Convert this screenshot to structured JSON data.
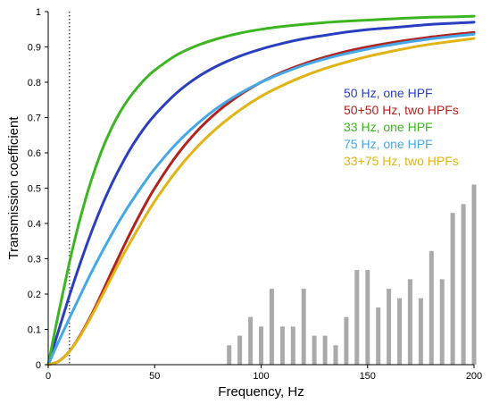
{
  "chart_data": {
    "type": "line",
    "xlabel": "Frequency, Hz",
    "ylabel": "Transmission coefficient",
    "xlim": [
      0,
      200
    ],
    "ylim": [
      0,
      1
    ],
    "x_ticks": [
      0,
      50,
      100,
      150,
      200
    ],
    "x_tick_labels": [
      "0",
      "50",
      "100",
      "150",
      "200"
    ],
    "y_ticks": [
      0,
      0.1,
      0.2,
      0.3,
      0.4,
      0.5,
      0.6,
      0.7,
      0.8,
      0.9,
      1
    ],
    "y_tick_labels": [
      "0",
      "0.1",
      "0.2",
      "0.3",
      "0.4",
      "0.5",
      "0.6",
      "0.7",
      "0.8",
      "0.9",
      "1"
    ],
    "grid": false,
    "legend_position": "right",
    "reference_line": {
      "x": 10,
      "style": "dotted"
    },
    "x": [
      0,
      5,
      10,
      15,
      20,
      25,
      30,
      35,
      40,
      45,
      50,
      60,
      70,
      80,
      90,
      100,
      110,
      120,
      130,
      140,
      150,
      160,
      170,
      180,
      190,
      200
    ],
    "series": [
      {
        "name": "50 Hz, one HPF",
        "color": "#2a3fbf",
        "values": [
          0,
          0.099,
          0.196,
          0.287,
          0.371,
          0.447,
          0.514,
          0.573,
          0.625,
          0.669,
          0.707,
          0.768,
          0.814,
          0.848,
          0.874,
          0.894,
          0.91,
          0.923,
          0.933,
          0.942,
          0.949,
          0.954,
          0.959,
          0.964,
          0.967,
          0.97
        ]
      },
      {
        "name": "50+50 Hz, two HPFs",
        "color": "#b2221e",
        "values": [
          0,
          0.01,
          0.038,
          0.083,
          0.138,
          0.2,
          0.265,
          0.329,
          0.39,
          0.447,
          0.5,
          0.59,
          0.662,
          0.719,
          0.764,
          0.8,
          0.829,
          0.852,
          0.871,
          0.887,
          0.9,
          0.911,
          0.92,
          0.928,
          0.935,
          0.941
        ]
      },
      {
        "name": "33 Hz, one HPF",
        "color": "#3cb521",
        "values": [
          0,
          0.15,
          0.29,
          0.414,
          0.518,
          0.604,
          0.673,
          0.728,
          0.771,
          0.806,
          0.834,
          0.876,
          0.904,
          0.924,
          0.939,
          0.95,
          0.958,
          0.964,
          0.969,
          0.973,
          0.976,
          0.979,
          0.982,
          0.984,
          0.985,
          0.987
        ]
      },
      {
        "name": "75 Hz, one HPF",
        "color": "#44a8e6",
        "values": [
          0,
          0.067,
          0.132,
          0.196,
          0.258,
          0.316,
          0.371,
          0.423,
          0.47,
          0.514,
          0.555,
          0.625,
          0.682,
          0.73,
          0.768,
          0.8,
          0.826,
          0.848,
          0.866,
          0.881,
          0.894,
          0.905,
          0.915,
          0.923,
          0.93,
          0.936
        ]
      },
      {
        "name": "33+75 Hz, two HPFs",
        "color": "#e0b415",
        "values": [
          0,
          0.01,
          0.038,
          0.081,
          0.134,
          0.191,
          0.25,
          0.308,
          0.362,
          0.414,
          0.463,
          0.547,
          0.617,
          0.674,
          0.721,
          0.76,
          0.791,
          0.817,
          0.839,
          0.857,
          0.873,
          0.886,
          0.898,
          0.908,
          0.916,
          0.924
        ]
      }
    ],
    "histogram": {
      "color": "#aaaaaa",
      "x": [
        85,
        90,
        95,
        100,
        105,
        110,
        115,
        120,
        125,
        130,
        135,
        140,
        145,
        150,
        155,
        160,
        165,
        170,
        175,
        180,
        185,
        190,
        195,
        200
      ],
      "values": [
        0.055,
        0.082,
        0.135,
        0.108,
        0.215,
        0.108,
        0.108,
        0.215,
        0.082,
        0.082,
        0.055,
        0.135,
        0.268,
        0.268,
        0.162,
        0.215,
        0.188,
        0.242,
        0.188,
        0.322,
        0.242,
        0.43,
        0.455,
        0.51
      ]
    }
  }
}
